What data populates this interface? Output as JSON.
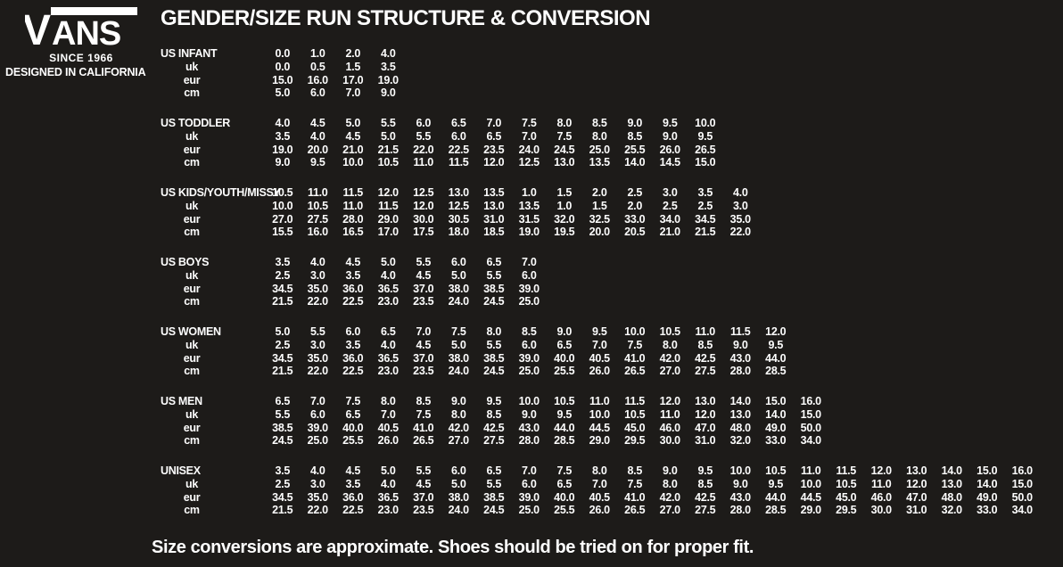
{
  "brand": {
    "logo_v": "V",
    "logo_ans": "ANS",
    "logo_tagline": "SINCE 1966",
    "designed_in": "DESIGNED IN CALIFORNIA"
  },
  "title": "GENDER/SIZE RUN STRUCTURE & CONVERSION",
  "footer": "Size conversions are approximate. Shoes should be tried on for proper fit.",
  "colors": {
    "background": "#1d1b19",
    "text": "#ffffff"
  },
  "chart_data": {
    "type": "table",
    "row_keys": [
      "us",
      "uk",
      "eur",
      "cm"
    ],
    "sub_labels": {
      "uk": "uk",
      "eur": "eur",
      "cm": "cm"
    },
    "sections": [
      {
        "name": "US INFANT",
        "rows": {
          "us": [
            "0.0",
            "1.0",
            "2.0",
            "4.0"
          ],
          "uk": [
            "0.0",
            "0.5",
            "1.5",
            "3.5"
          ],
          "eur": [
            "15.0",
            "16.0",
            "17.0",
            "19.0"
          ],
          "cm": [
            "5.0",
            "6.0",
            "7.0",
            "9.0"
          ]
        }
      },
      {
        "name": "US TODDLER",
        "rows": {
          "us": [
            "4.0",
            "4.5",
            "5.0",
            "5.5",
            "6.0",
            "6.5",
            "7.0",
            "7.5",
            "8.0",
            "8.5",
            "9.0",
            "9.5",
            "10.0"
          ],
          "uk": [
            "3.5",
            "4.0",
            "4.5",
            "5.0",
            "5.5",
            "6.0",
            "6.5",
            "7.0",
            "7.5",
            "8.0",
            "8.5",
            "9.0",
            "9.5"
          ],
          "eur": [
            "19.0",
            "20.0",
            "21.0",
            "21.5",
            "22.0",
            "22.5",
            "23.5",
            "24.0",
            "24.5",
            "25.0",
            "25.5",
            "26.0",
            "26.5"
          ],
          "cm": [
            "9.0",
            "9.5",
            "10.0",
            "10.5",
            "11.0",
            "11.5",
            "12.0",
            "12.5",
            "13.0",
            "13.5",
            "14.0",
            "14.5",
            "15.0"
          ]
        }
      },
      {
        "name": "US KIDS/YOUTH/MISSY",
        "rows": {
          "us": [
            "10.5",
            "11.0",
            "11.5",
            "12.0",
            "12.5",
            "13.0",
            "13.5",
            "1.0",
            "1.5",
            "2.0",
            "2.5",
            "3.0",
            "3.5",
            "4.0"
          ],
          "uk": [
            "10.0",
            "10.5",
            "11.0",
            "11.5",
            "12.0",
            "12.5",
            "13.0",
            "13.5",
            "1.0",
            "1.5",
            "2.0",
            "2.5",
            "2.5",
            "3.0"
          ],
          "eur": [
            "27.0",
            "27.5",
            "28.0",
            "29.0",
            "30.0",
            "30.5",
            "31.0",
            "31.5",
            "32.0",
            "32.5",
            "33.0",
            "34.0",
            "34.5",
            "35.0"
          ],
          "cm": [
            "15.5",
            "16.0",
            "16.5",
            "17.0",
            "17.5",
            "18.0",
            "18.5",
            "19.0",
            "19.5",
            "20.0",
            "20.5",
            "21.0",
            "21.5",
            "22.0"
          ]
        }
      },
      {
        "name": "US BOYS",
        "rows": {
          "us": [
            "3.5",
            "4.0",
            "4.5",
            "5.0",
            "5.5",
            "6.0",
            "6.5",
            "7.0"
          ],
          "uk": [
            "2.5",
            "3.0",
            "3.5",
            "4.0",
            "4.5",
            "5.0",
            "5.5",
            "6.0"
          ],
          "eur": [
            "34.5",
            "35.0",
            "36.0",
            "36.5",
            "37.0",
            "38.0",
            "38.5",
            "39.0"
          ],
          "cm": [
            "21.5",
            "22.0",
            "22.5",
            "23.0",
            "23.5",
            "24.0",
            "24.5",
            "25.0"
          ]
        }
      },
      {
        "name": "US WOMEN",
        "rows": {
          "us": [
            "5.0",
            "5.5",
            "6.0",
            "6.5",
            "7.0",
            "7.5",
            "8.0",
            "8.5",
            "9.0",
            "9.5",
            "10.0",
            "10.5",
            "11.0",
            "11.5",
            "12.0"
          ],
          "uk": [
            "2.5",
            "3.0",
            "3.5",
            "4.0",
            "4.5",
            "5.0",
            "5.5",
            "6.0",
            "6.5",
            "7.0",
            "7.5",
            "8.0",
            "8.5",
            "9.0",
            "9.5"
          ],
          "eur": [
            "34.5",
            "35.0",
            "36.0",
            "36.5",
            "37.0",
            "38.0",
            "38.5",
            "39.0",
            "40.0",
            "40.5",
            "41.0",
            "42.0",
            "42.5",
            "43.0",
            "44.0"
          ],
          "cm": [
            "21.5",
            "22.0",
            "22.5",
            "23.0",
            "23.5",
            "24.0",
            "24.5",
            "25.0",
            "25.5",
            "26.0",
            "26.5",
            "27.0",
            "27.5",
            "28.0",
            "28.5"
          ]
        }
      },
      {
        "name": "US MEN",
        "rows": {
          "us": [
            "6.5",
            "7.0",
            "7.5",
            "8.0",
            "8.5",
            "9.0",
            "9.5",
            "10.0",
            "10.5",
            "11.0",
            "11.5",
            "12.0",
            "13.0",
            "14.0",
            "15.0",
            "16.0"
          ],
          "uk": [
            "5.5",
            "6.0",
            "6.5",
            "7.0",
            "7.5",
            "8.0",
            "8.5",
            "9.0",
            "9.5",
            "10.0",
            "10.5",
            "11.0",
            "12.0",
            "13.0",
            "14.0",
            "15.0"
          ],
          "eur": [
            "38.5",
            "39.0",
            "40.0",
            "40.5",
            "41.0",
            "42.0",
            "42.5",
            "43.0",
            "44.0",
            "44.5",
            "45.0",
            "46.0",
            "47.0",
            "48.0",
            "49.0",
            "50.0"
          ],
          "cm": [
            "24.5",
            "25.0",
            "25.5",
            "26.0",
            "26.5",
            "27.0",
            "27.5",
            "28.0",
            "28.5",
            "29.0",
            "29.5",
            "30.0",
            "31.0",
            "32.0",
            "33.0",
            "34.0"
          ]
        }
      },
      {
        "name": "UNISEX",
        "rows": {
          "us": [
            "3.5",
            "4.0",
            "4.5",
            "5.0",
            "5.5",
            "6.0",
            "6.5",
            "7.0",
            "7.5",
            "8.0",
            "8.5",
            "9.0",
            "9.5",
            "10.0",
            "10.5",
            "11.0",
            "11.5",
            "12.0",
            "13.0",
            "14.0",
            "15.0",
            "16.0"
          ],
          "uk": [
            "2.5",
            "3.0",
            "3.5",
            "4.0",
            "4.5",
            "5.0",
            "5.5",
            "6.0",
            "6.5",
            "7.0",
            "7.5",
            "8.0",
            "8.5",
            "9.0",
            "9.5",
            "10.0",
            "10.5",
            "11.0",
            "12.0",
            "13.0",
            "14.0",
            "15.0"
          ],
          "eur": [
            "34.5",
            "35.0",
            "36.0",
            "36.5",
            "37.0",
            "38.0",
            "38.5",
            "39.0",
            "40.0",
            "40.5",
            "41.0",
            "42.0",
            "42.5",
            "43.0",
            "44.0",
            "44.5",
            "45.0",
            "46.0",
            "47.0",
            "48.0",
            "49.0",
            "50.0"
          ],
          "cm": [
            "21.5",
            "22.0",
            "22.5",
            "23.0",
            "23.5",
            "24.0",
            "24.5",
            "25.0",
            "25.5",
            "26.0",
            "26.5",
            "27.0",
            "27.5",
            "28.0",
            "28.5",
            "29.0",
            "29.5",
            "30.0",
            "31.0",
            "32.0",
            "33.0",
            "34.0"
          ]
        }
      }
    ]
  }
}
